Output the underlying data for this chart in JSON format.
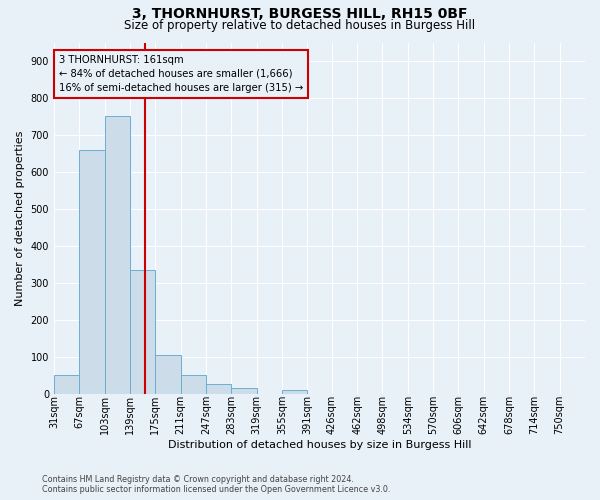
{
  "title": "3, THORNHURST, BURGESS HILL, RH15 0BF",
  "subtitle": "Size of property relative to detached houses in Burgess Hill",
  "xlabel": "Distribution of detached houses by size in Burgess Hill",
  "ylabel": "Number of detached properties",
  "bar_labels": [
    "31sqm",
    "67sqm",
    "103sqm",
    "139sqm",
    "175sqm",
    "211sqm",
    "247sqm",
    "283sqm",
    "319sqm",
    "355sqm",
    "391sqm",
    "426sqm",
    "462sqm",
    "498sqm",
    "534sqm",
    "570sqm",
    "606sqm",
    "642sqm",
    "678sqm",
    "714sqm",
    "750sqm"
  ],
  "bar_values": [
    50,
    660,
    750,
    335,
    105,
    50,
    27,
    15,
    0,
    10,
    0,
    0,
    0,
    0,
    0,
    0,
    0,
    0,
    0,
    0,
    0
  ],
  "bin_edges": [
    31,
    67,
    103,
    139,
    175,
    211,
    247,
    283,
    319,
    355,
    391,
    426,
    462,
    498,
    534,
    570,
    606,
    642,
    678,
    714,
    750
  ],
  "bar_color": "#ccdce8",
  "bar_edge_color": "#6aafd4",
  "ylim": [
    0,
    950
  ],
  "yticks": [
    0,
    100,
    200,
    300,
    400,
    500,
    600,
    700,
    800,
    900
  ],
  "property_size": 161,
  "vline_color": "#cc0000",
  "annotation_line1": "3 THORNHURST: 161sqm",
  "annotation_line2": "← 84% of detached houses are smaller (1,666)",
  "annotation_line3": "16% of semi-detached houses are larger (315) →",
  "annotation_box_color": "#cc0000",
  "footnote1": "Contains HM Land Registry data © Crown copyright and database right 2024.",
  "footnote2": "Contains public sector information licensed under the Open Government Licence v3.0.",
  "bg_color": "#e8f0f8",
  "grid_color": "#ffffff",
  "title_fontsize": 10,
  "subtitle_fontsize": 8.5,
  "tick_fontsize": 7,
  "ylabel_fontsize": 8,
  "xlabel_fontsize": 8
}
